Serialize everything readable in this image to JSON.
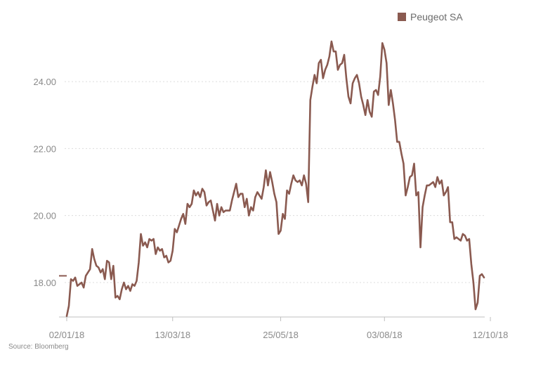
{
  "chart_data": {
    "type": "line",
    "title": "",
    "xlabel": "",
    "ylabel": "",
    "ylim": [
      16.95,
      25.45
    ],
    "yticks": [
      "18.00",
      "20.00",
      "22.00",
      "24.00"
    ],
    "ytick_values": [
      18,
      20,
      22,
      24
    ],
    "xticks": [
      "02/01/18",
      "13/03/18",
      "25/05/18",
      "03/08/18",
      "12/10/18"
    ],
    "xtick_index": [
      0,
      50,
      101,
      150,
      200
    ],
    "legend": "top-right",
    "series": [
      {
        "name": "Peugeot SA",
        "color": "#8a5a50",
        "values": [
          17.0,
          17.3,
          18.1,
          18.05,
          18.15,
          17.9,
          17.95,
          18.0,
          17.85,
          18.2,
          18.3,
          18.4,
          19.0,
          18.7,
          18.5,
          18.45,
          18.3,
          18.4,
          18.1,
          18.65,
          18.6,
          18.1,
          18.5,
          17.55,
          17.6,
          17.5,
          17.8,
          18.0,
          17.8,
          17.9,
          17.75,
          17.95,
          17.9,
          18.05,
          18.6,
          19.45,
          19.1,
          19.2,
          19.05,
          19.3,
          19.25,
          19.3,
          18.85,
          19.05,
          18.95,
          19.0,
          18.75,
          18.8,
          18.6,
          18.65,
          18.95,
          19.6,
          19.5,
          19.7,
          19.9,
          20.05,
          19.75,
          20.35,
          20.25,
          20.35,
          20.75,
          20.6,
          20.7,
          20.55,
          20.8,
          20.7,
          20.3,
          20.4,
          20.45,
          20.15,
          19.85,
          20.35,
          20.0,
          20.25,
          20.1,
          20.15,
          20.15,
          20.15,
          20.45,
          20.7,
          20.95,
          20.55,
          20.65,
          20.65,
          20.25,
          20.5,
          20.0,
          20.25,
          20.15,
          20.55,
          20.7,
          20.6,
          20.5,
          20.85,
          21.35,
          20.9,
          21.3,
          21.0,
          20.65,
          20.4,
          19.45,
          19.55,
          20.05,
          19.9,
          20.75,
          20.65,
          20.95,
          21.2,
          21.05,
          21.0,
          21.05,
          20.9,
          21.2,
          20.95,
          20.4,
          23.45,
          23.85,
          24.2,
          23.95,
          24.55,
          24.65,
          24.1,
          24.35,
          24.5,
          24.75,
          25.2,
          24.9,
          24.9,
          24.35,
          24.5,
          24.55,
          24.8,
          24.1,
          23.55,
          23.35,
          23.95,
          24.1,
          24.2,
          23.95,
          23.55,
          23.3,
          23.0,
          23.45,
          23.1,
          22.95,
          23.7,
          23.75,
          23.6,
          24.15,
          25.15,
          24.95,
          24.55,
          23.3,
          23.75,
          23.35,
          22.85,
          22.2,
          22.2,
          21.85,
          21.55,
          20.6,
          20.85,
          21.15,
          21.2,
          21.55,
          20.6,
          20.7,
          19.05,
          20.25,
          20.6,
          20.9,
          20.9,
          20.95,
          21.0,
          20.85,
          21.15,
          20.95,
          21.05,
          20.6,
          20.7,
          20.85,
          19.8,
          19.8,
          19.3,
          19.35,
          19.3,
          19.25,
          19.45,
          19.4,
          19.25,
          19.3,
          18.55,
          18.0,
          17.2,
          17.4,
          18.2,
          18.25,
          18.15
        ]
      }
    ],
    "reference_line": {
      "value": 18.2,
      "color": "#8a5a50"
    }
  },
  "source_text": "Source: Bloomberg"
}
